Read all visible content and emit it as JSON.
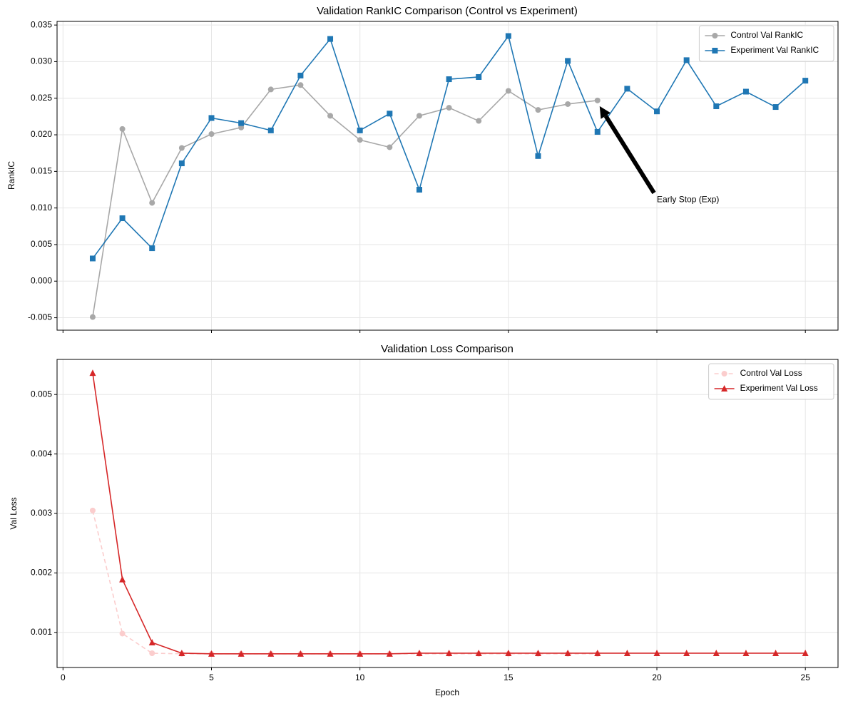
{
  "chart_data": [
    {
      "type": "line",
      "title": "Validation RankIC Comparison (Control vs Experiment)",
      "ylabel": "RankIC",
      "xlim": [
        -0.2,
        26.1
      ],
      "xticks": [
        0,
        5,
        10,
        15,
        20,
        25
      ],
      "show_xtick_labels": false,
      "ylim": [
        -0.0067,
        0.0355
      ],
      "yticks": [
        -0.005,
        {
          "value": 0,
          "label": "0.000"
        },
        0.005,
        {
          "value": 0.01,
          "label": "0.010"
        },
        0.015,
        {
          "value": 0.02,
          "label": "0.020"
        },
        0.025,
        {
          "value": 0.03,
          "label": "0.030"
        },
        0.035
      ],
      "grid": true,
      "legend": "upper right",
      "series": [
        {
          "name": "Control Val RankIC",
          "color": "#a8a8a8",
          "marker": "circle",
          "linestyle": "solid",
          "x": [
            1,
            2,
            3,
            4,
            5,
            6,
            7,
            8,
            9,
            10,
            11,
            12,
            13,
            14,
            15,
            16,
            17,
            18
          ],
          "values": [
            -0.0049,
            0.0208,
            0.0107,
            0.0182,
            0.0201,
            0.021,
            0.0262,
            0.0268,
            0.0226,
            0.0193,
            0.0183,
            0.0226,
            0.0237,
            0.0219,
            0.026,
            0.0234,
            0.0242,
            0.0247
          ]
        },
        {
          "name": "Experiment Val RankIC",
          "color": "#1f77b4",
          "marker": "square",
          "linestyle": "solid",
          "x": [
            1,
            2,
            3,
            4,
            5,
            6,
            7,
            8,
            9,
            10,
            11,
            12,
            13,
            14,
            15,
            16,
            17,
            18,
            19,
            20,
            21,
            22,
            23,
            24,
            25
          ],
          "values": [
            0.0031,
            0.0086,
            0.0045,
            0.0161,
            0.0223,
            0.0216,
            0.0206,
            0.0281,
            0.0331,
            0.0206,
            0.0229,
            0.0125,
            0.0276,
            0.0279,
            0.0335,
            0.0171,
            0.0301,
            0.0204,
            0.0263,
            0.0232,
            0.0302,
            0.0239,
            0.0259,
            0.0238,
            0.0274
          ]
        }
      ],
      "annotations": [
        {
          "text": "Early Stop (Exp)",
          "xy": [
            18,
            0.0243
          ],
          "xytext": [
            20,
            0.0105
          ]
        }
      ]
    },
    {
      "type": "line",
      "title": "Validation Loss Comparison",
      "ylabel": "Val Loss",
      "xlabel": "Epoch",
      "xlim": [
        -0.2,
        26.1
      ],
      "xticks": [
        0,
        5,
        10,
        15,
        20,
        25
      ],
      "show_xtick_labels": true,
      "ylim": [
        0.00041,
        0.00559
      ],
      "yticks": [
        0.001,
        0.002,
        0.003,
        0.004,
        0.005
      ],
      "grid": true,
      "legend": "upper right",
      "series": [
        {
          "name": "Control Val Loss",
          "color": "#fbcdcd",
          "marker": "circle",
          "linestyle": "dashed",
          "x": [
            1,
            2,
            3,
            4,
            5,
            6,
            7,
            8,
            9,
            10,
            11,
            12,
            13,
            14,
            15,
            16,
            17,
            18
          ],
          "values": [
            0.00305,
            0.00098,
            0.00065,
            0.00064,
            0.00064,
            0.00064,
            0.00064,
            0.00064,
            0.00064,
            0.00064,
            0.00064,
            0.00064,
            0.00064,
            0.00064,
            0.00064,
            0.00064,
            0.00064,
            0.00064
          ]
        },
        {
          "name": "Experiment Val Loss",
          "color": "#d62728",
          "marker": "triangle",
          "linestyle": "solid",
          "x": [
            1,
            2,
            3,
            4,
            5,
            6,
            7,
            8,
            9,
            10,
            11,
            12,
            13,
            14,
            15,
            16,
            17,
            18,
            19,
            20,
            21,
            22,
            23,
            24,
            25
          ],
          "values": [
            0.00536,
            0.00189,
            0.00083,
            0.00065,
            0.00064,
            0.00064,
            0.00064,
            0.00064,
            0.00064,
            0.00064,
            0.00064,
            0.00065,
            0.00065,
            0.00065,
            0.00065,
            0.00065,
            0.00065,
            0.00065,
            0.00065,
            0.00065,
            0.00065,
            0.00065,
            0.00065,
            0.00065,
            0.00065
          ]
        }
      ]
    }
  ]
}
